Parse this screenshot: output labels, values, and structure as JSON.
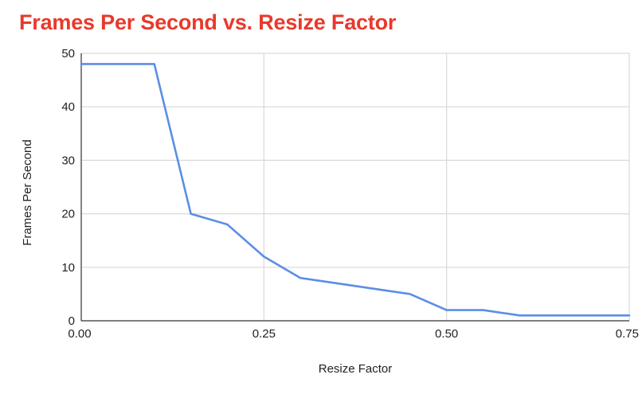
{
  "chart_data": {
    "type": "line",
    "title": "Frames Per Second vs. Resize Factor",
    "xlabel": "Resize Factor",
    "ylabel": "Frames Per Second",
    "xlim": [
      0,
      0.75
    ],
    "ylim": [
      0,
      50
    ],
    "x_ticks": [
      "0.00",
      "0.25",
      "0.50",
      "0.75"
    ],
    "y_ticks": [
      "0",
      "10",
      "20",
      "30",
      "40",
      "50"
    ],
    "x_tick_values": [
      0,
      0.25,
      0.5,
      0.75
    ],
    "y_tick_values": [
      0,
      10,
      20,
      30,
      40,
      50
    ],
    "grid": true,
    "legend": "none",
    "colors": {
      "title": "#e8392b",
      "series": "#5b8ee6",
      "grid": "#d9d9d9",
      "axis": "#333333"
    },
    "series": [
      {
        "x": [
          0,
          0.05,
          0.1,
          0.15,
          0.2,
          0.25,
          0.3,
          0.35,
          0.4,
          0.45,
          0.5,
          0.55,
          0.6,
          0.65,
          0.7,
          0.75
        ],
        "values": [
          48,
          48,
          48,
          20,
          18,
          12,
          8,
          7,
          6,
          5,
          2,
          2,
          1,
          1,
          1,
          1
        ]
      }
    ]
  }
}
